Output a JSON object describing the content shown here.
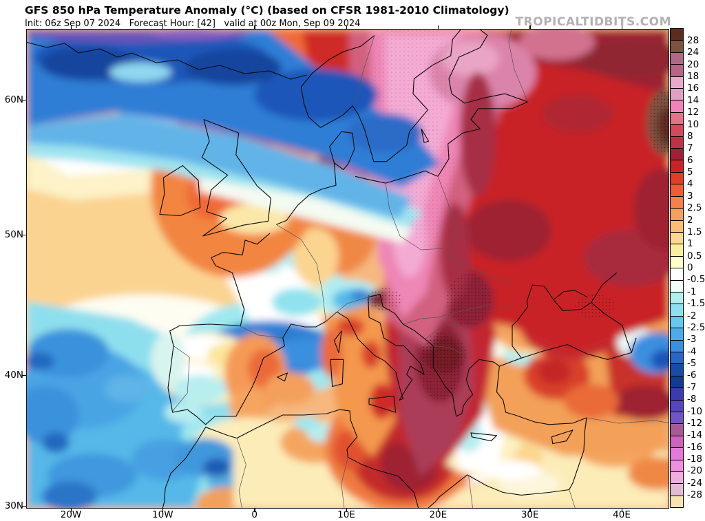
{
  "header": {
    "title": "GFS 850 hPa Temperature Anomaly (°C) (based on CFSR 1981-2010 Climatology)",
    "subtitle": "Init: 06z Sep 07 2024   Forecast Hour: [42]   valid at 00z Mon, Sep 09 2024",
    "watermark": "TROPICALTIDBITS.COM"
  },
  "map": {
    "lat_labels": [
      "60N",
      "50N",
      "40N",
      "30N"
    ],
    "lon_labels": [
      "20W",
      "10W",
      "0",
      "10E",
      "20E",
      "30E",
      "40E"
    ]
  },
  "colorbar": {
    "units": "°C",
    "labels": [
      "28",
      "24",
      "20",
      "18",
      "16",
      "14",
      "12",
      "10",
      "8",
      "7",
      "6",
      "5",
      "4",
      "3",
      "2.5",
      "2",
      "1.5",
      "1",
      "0.5",
      "0",
      "-0.5",
      "-1",
      "-1.5",
      "-2",
      "-2.5",
      "-3",
      "-4",
      "-5",
      "-6",
      "-7",
      "-8",
      "-10",
      "-12",
      "-14",
      "-16",
      "-18",
      "-20",
      "-24",
      "-28"
    ],
    "colors": [
      "#5e2b20",
      "#7d5340",
      "#ae6a84",
      "#bb6384",
      "#e7aacb",
      "#dfa0c4",
      "#f084b8",
      "#e57287",
      "#d44a5c",
      "#bf3147",
      "#a02136",
      "#cb2127",
      "#e23d27",
      "#ee5d35",
      "#f4814b",
      "#f89f5b",
      "#fbbc75",
      "#fdd78f",
      "#fcee9f",
      "#ffffc9",
      "#ffffff",
      "#effdfc",
      "#aff0ec",
      "#8adff0",
      "#65c8f0",
      "#4cabe8",
      "#3a8fdf",
      "#2767c8",
      "#174ca8",
      "#123c92",
      "#3c3aae",
      "#5446c0",
      "#7155c8",
      "#a85a94",
      "#cc63bd",
      "#e578d8",
      "#ef8fe2",
      "#efaede",
      "#e3bcd4",
      "#f7e2b2"
    ]
  }
}
